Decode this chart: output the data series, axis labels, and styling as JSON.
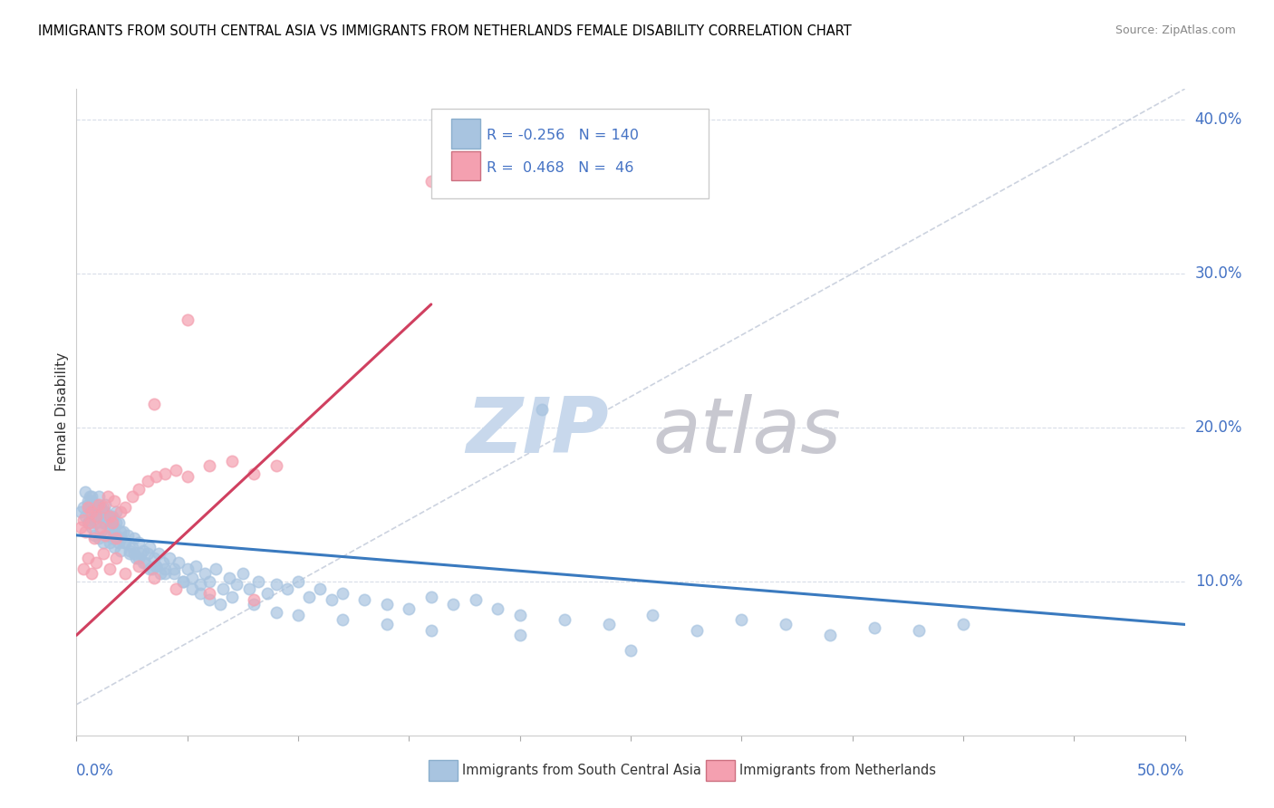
{
  "title": "IMMIGRANTS FROM SOUTH CENTRAL ASIA VS IMMIGRANTS FROM NETHERLANDS FEMALE DISABILITY CORRELATION CHART",
  "source": "Source: ZipAtlas.com",
  "ylabel": "Female Disability",
  "legend_blue_R": "-0.256",
  "legend_blue_N": "140",
  "legend_pink_R": "0.468",
  "legend_pink_N": "46",
  "legend_label_blue": "Immigrants from South Central Asia",
  "legend_label_pink": "Immigrants from Netherlands",
  "blue_color": "#a8c4e0",
  "pink_color": "#f4a0b0",
  "blue_line_color": "#3a7abf",
  "pink_line_color": "#d04060",
  "gray_line_color": "#c0c8d8",
  "xlim": [
    0.0,
    0.5
  ],
  "ylim": [
    0.0,
    0.42
  ],
  "blue_scatter_x": [
    0.002,
    0.003,
    0.004,
    0.005,
    0.005,
    0.006,
    0.006,
    0.007,
    0.007,
    0.008,
    0.008,
    0.009,
    0.009,
    0.01,
    0.01,
    0.01,
    0.011,
    0.011,
    0.012,
    0.012,
    0.013,
    0.013,
    0.014,
    0.014,
    0.015,
    0.015,
    0.016,
    0.016,
    0.017,
    0.017,
    0.018,
    0.018,
    0.019,
    0.019,
    0.02,
    0.02,
    0.021,
    0.022,
    0.023,
    0.024,
    0.025,
    0.026,
    0.027,
    0.028,
    0.029,
    0.03,
    0.031,
    0.032,
    0.033,
    0.034,
    0.035,
    0.036,
    0.037,
    0.038,
    0.039,
    0.04,
    0.042,
    0.044,
    0.046,
    0.048,
    0.05,
    0.052,
    0.054,
    0.056,
    0.058,
    0.06,
    0.063,
    0.066,
    0.069,
    0.072,
    0.075,
    0.078,
    0.082,
    0.086,
    0.09,
    0.095,
    0.1,
    0.105,
    0.11,
    0.115,
    0.12,
    0.13,
    0.14,
    0.15,
    0.16,
    0.17,
    0.18,
    0.19,
    0.2,
    0.21,
    0.22,
    0.24,
    0.26,
    0.28,
    0.3,
    0.32,
    0.34,
    0.36,
    0.38,
    0.4,
    0.004,
    0.005,
    0.006,
    0.007,
    0.008,
    0.009,
    0.01,
    0.011,
    0.012,
    0.013,
    0.014,
    0.015,
    0.016,
    0.017,
    0.018,
    0.019,
    0.02,
    0.022,
    0.024,
    0.026,
    0.028,
    0.03,
    0.033,
    0.036,
    0.04,
    0.044,
    0.048,
    0.052,
    0.056,
    0.06,
    0.065,
    0.07,
    0.08,
    0.09,
    0.1,
    0.12,
    0.14,
    0.16,
    0.2,
    0.25
  ],
  "blue_scatter_y": [
    0.145,
    0.148,
    0.142,
    0.15,
    0.138,
    0.155,
    0.14,
    0.152,
    0.135,
    0.148,
    0.13,
    0.145,
    0.138,
    0.155,
    0.142,
    0.128,
    0.148,
    0.132,
    0.145,
    0.125,
    0.138,
    0.15,
    0.13,
    0.142,
    0.135,
    0.125,
    0.14,
    0.128,
    0.135,
    0.122,
    0.13,
    0.145,
    0.125,
    0.138,
    0.128,
    0.12,
    0.132,
    0.125,
    0.13,
    0.118,
    0.122,
    0.128,
    0.115,
    0.125,
    0.118,
    0.12,
    0.112,
    0.118,
    0.122,
    0.108,
    0.115,
    0.11,
    0.118,
    0.105,
    0.112,
    0.108,
    0.115,
    0.105,
    0.112,
    0.1,
    0.108,
    0.102,
    0.11,
    0.098,
    0.105,
    0.1,
    0.108,
    0.095,
    0.102,
    0.098,
    0.105,
    0.095,
    0.1,
    0.092,
    0.098,
    0.095,
    0.1,
    0.09,
    0.095,
    0.088,
    0.092,
    0.088,
    0.085,
    0.082,
    0.09,
    0.085,
    0.088,
    0.082,
    0.078,
    0.212,
    0.075,
    0.072,
    0.078,
    0.068,
    0.075,
    0.072,
    0.065,
    0.07,
    0.068,
    0.072,
    0.158,
    0.152,
    0.148,
    0.155,
    0.145,
    0.15,
    0.142,
    0.148,
    0.138,
    0.145,
    0.14,
    0.135,
    0.142,
    0.13,
    0.138,
    0.128,
    0.132,
    0.125,
    0.12,
    0.118,
    0.115,
    0.112,
    0.108,
    0.11,
    0.105,
    0.108,
    0.1,
    0.095,
    0.092,
    0.088,
    0.085,
    0.09,
    0.085,
    0.08,
    0.078,
    0.075,
    0.072,
    0.068,
    0.065,
    0.055
  ],
  "pink_scatter_x": [
    0.002,
    0.003,
    0.004,
    0.005,
    0.006,
    0.007,
    0.008,
    0.009,
    0.01,
    0.011,
    0.012,
    0.013,
    0.014,
    0.015,
    0.016,
    0.017,
    0.018,
    0.02,
    0.022,
    0.025,
    0.028,
    0.032,
    0.036,
    0.04,
    0.045,
    0.05,
    0.06,
    0.07,
    0.08,
    0.09,
    0.003,
    0.005,
    0.007,
    0.009,
    0.012,
    0.015,
    0.018,
    0.022,
    0.028,
    0.035,
    0.045,
    0.06,
    0.08,
    0.035,
    0.05,
    0.16
  ],
  "pink_scatter_y": [
    0.135,
    0.14,
    0.132,
    0.148,
    0.138,
    0.145,
    0.128,
    0.142,
    0.15,
    0.135,
    0.148,
    0.13,
    0.155,
    0.142,
    0.138,
    0.152,
    0.128,
    0.145,
    0.148,
    0.155,
    0.16,
    0.165,
    0.168,
    0.17,
    0.172,
    0.168,
    0.175,
    0.178,
    0.17,
    0.175,
    0.108,
    0.115,
    0.105,
    0.112,
    0.118,
    0.108,
    0.115,
    0.105,
    0.11,
    0.102,
    0.095,
    0.092,
    0.088,
    0.215,
    0.27,
    0.36
  ],
  "blue_trend_x": [
    0.0,
    0.5
  ],
  "blue_trend_y": [
    0.13,
    0.072
  ],
  "pink_trend_x": [
    0.0,
    0.16
  ],
  "pink_trend_y": [
    0.065,
    0.28
  ],
  "gray_trend_x": [
    0.0,
    0.5
  ],
  "gray_trend_y": [
    0.02,
    0.42
  ],
  "ytick_vals": [
    0.1,
    0.2,
    0.3,
    0.4
  ],
  "ytick_labels": [
    "10.0%",
    "20.0%",
    "30.0%",
    "40.0%"
  ],
  "grid_color": "#d8dde8",
  "title_fontsize": 10.5,
  "tick_color": "#4472c4",
  "watermark_zip_color": "#c8d8ec",
  "watermark_atlas_color": "#c8c8d0"
}
